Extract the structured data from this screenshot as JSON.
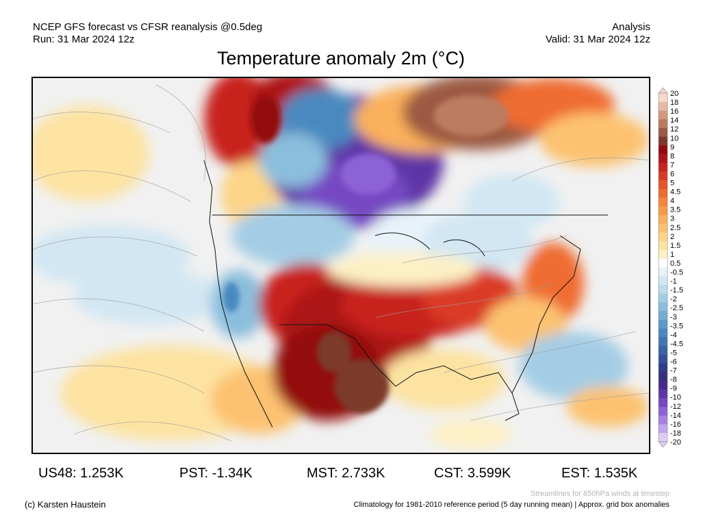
{
  "header": {
    "left_line1": "NCEP GFS forecast vs CFSR reanalysis @0.5deg",
    "left_line2": "Run: 31 Mar 2024 12z",
    "right_line1": "Analysis",
    "right_line2": "Valid: 31 Mar 2024 12z"
  },
  "title": "Temperature anomaly 2m (°C)",
  "colorbar": {
    "labels": [
      "20",
      "18",
      "16",
      "14",
      "12",
      "10",
      "9",
      "8",
      "7",
      "6",
      "5",
      "4.5",
      "4",
      "3.5",
      "3",
      "2.5",
      "2",
      "1.5",
      "1",
      "0.5",
      "-0.5",
      "-1",
      "-1.5",
      "-2",
      "-2.5",
      "-3",
      "-3.5",
      "-4",
      "-4.5",
      "-5",
      "-6",
      "-7",
      "-8",
      "-9",
      "-10",
      "-12",
      "-14",
      "-16",
      "-18",
      "-20"
    ],
    "colors": [
      "#f6d8cc",
      "#e7b9a4",
      "#d39a7f",
      "#bb7b60",
      "#9c5a43",
      "#7b3a2a",
      "#930b10",
      "#ad1518",
      "#c8231f",
      "#da3a25",
      "#e65428",
      "#ef6c31",
      "#f5843b",
      "#f89a49",
      "#fbb05c",
      "#fcc271",
      "#fdd487",
      "#fde3a2",
      "#fdf0c4",
      "#ffffff",
      "#e8f3f9",
      "#d2e7f3",
      "#bcdbed",
      "#a4cde5",
      "#8bbedd",
      "#72add3",
      "#5b9bc9",
      "#4a89bf",
      "#3f76b3",
      "#3863a6",
      "#334f98",
      "#2f3d8b",
      "#36307f",
      "#482a8a",
      "#5e35a6",
      "#7648c2",
      "#8d62d4",
      "#a682e0",
      "#c1a6ec",
      "#ddccf5"
    ]
  },
  "stats": [
    {
      "label": "US48: 1.253K"
    },
    {
      "label": "PST: -1.34K"
    },
    {
      "label": "MST: 2.733K"
    },
    {
      "label": "CST: 3.599K"
    },
    {
      "label": "EST: 1.535K"
    }
  ],
  "footer": {
    "left": "(c) Karsten Haustein",
    "note1": "Streamlines for 850hPa winds at timestep",
    "note2": "Climatology for 1981-2010 reference period (5 day running mean) | Approx. grid box anomalies"
  }
}
